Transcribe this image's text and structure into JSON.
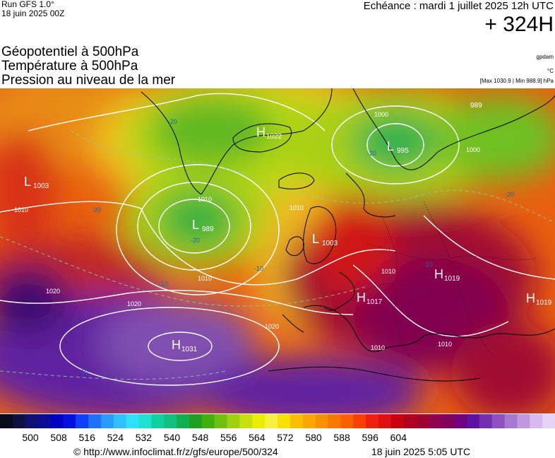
{
  "header": {
    "run_line1": "Run GFS 1.0°",
    "run_line2": "18 juin 2025 00Z",
    "echeance": "Echéance : mardi 1 juillet 2025 12h UTC",
    "lead_time": "+ 324H"
  },
  "titles": [
    "Géopotentiel à 500hPa",
    "Température à 500hPa",
    "Pression au niveau de la mer"
  ],
  "units": {
    "geopotential": "gpdam",
    "temperature": "°C",
    "pressure": "[Max 1030.9 | Min 988.9] hPa"
  },
  "pressure_centers": [
    {
      "type": "L",
      "value": "1003",
      "region": "west-atlantic"
    },
    {
      "type": "H",
      "value": "1022",
      "region": "greenland"
    },
    {
      "type": "L",
      "value": "995",
      "region": "scandinavia"
    },
    {
      "type": "L",
      "value": "989",
      "region": "south-of-iceland"
    },
    {
      "type": "L",
      "value": "1003",
      "region": "uk"
    },
    {
      "type": "H",
      "value": "1019",
      "region": "central-europe"
    },
    {
      "type": "H",
      "value": "1017",
      "region": "france"
    },
    {
      "type": "H",
      "value": "1019",
      "region": "east-europe"
    },
    {
      "type": "H",
      "value": "1031",
      "region": "azores"
    },
    {
      "type": "L",
      "value": "989",
      "region": "arctic-russia"
    }
  ],
  "isobar_labels": [
    "1010",
    "1010",
    "1010",
    "1020",
    "1020",
    "1020",
    "1010",
    "1000",
    "1000",
    "1010",
    "1010",
    "1010"
  ],
  "temperature_labels": [
    "-20",
    "-20",
    "-20",
    "-20",
    "-10",
    "-10",
    "-10",
    "-10",
    "-20"
  ],
  "colorbar": {
    "ticks": [
      "500",
      "508",
      "516",
      "524",
      "532",
      "540",
      "548",
      "556",
      "564",
      "572",
      "580",
      "588",
      "596",
      "604"
    ],
    "colors": [
      "#0b0b1e",
      "#101040",
      "#101070",
      "#0b0b95",
      "#0000c0",
      "#0010e0",
      "#1040ff",
      "#2070ff",
      "#2a9aff",
      "#30c0ff",
      "#30e0ff",
      "#20e0d0",
      "#10d0a0",
      "#10c080",
      "#10b050",
      "#20a020",
      "#40b010",
      "#70c010",
      "#a0d010",
      "#c8e010",
      "#e8f000",
      "#f8f040",
      "#f8e000",
      "#f8c000",
      "#f8a800",
      "#f89000",
      "#f87800",
      "#f86000",
      "#f84000",
      "#f02010",
      "#e01010",
      "#c80010",
      "#b00020",
      "#a00030",
      "#900050",
      "#800060",
      "#700080",
      "#6010a0",
      "#7030b0",
      "#9050c0",
      "#a878d0",
      "#c098e0",
      "#d8b8f0",
      "#e6d4f6"
    ]
  },
  "footer": {
    "url": "© http://www.infoclimat.fr/z/gfs/europe/500/324",
    "date": "18 juin 2025  5:05 UTC"
  }
}
